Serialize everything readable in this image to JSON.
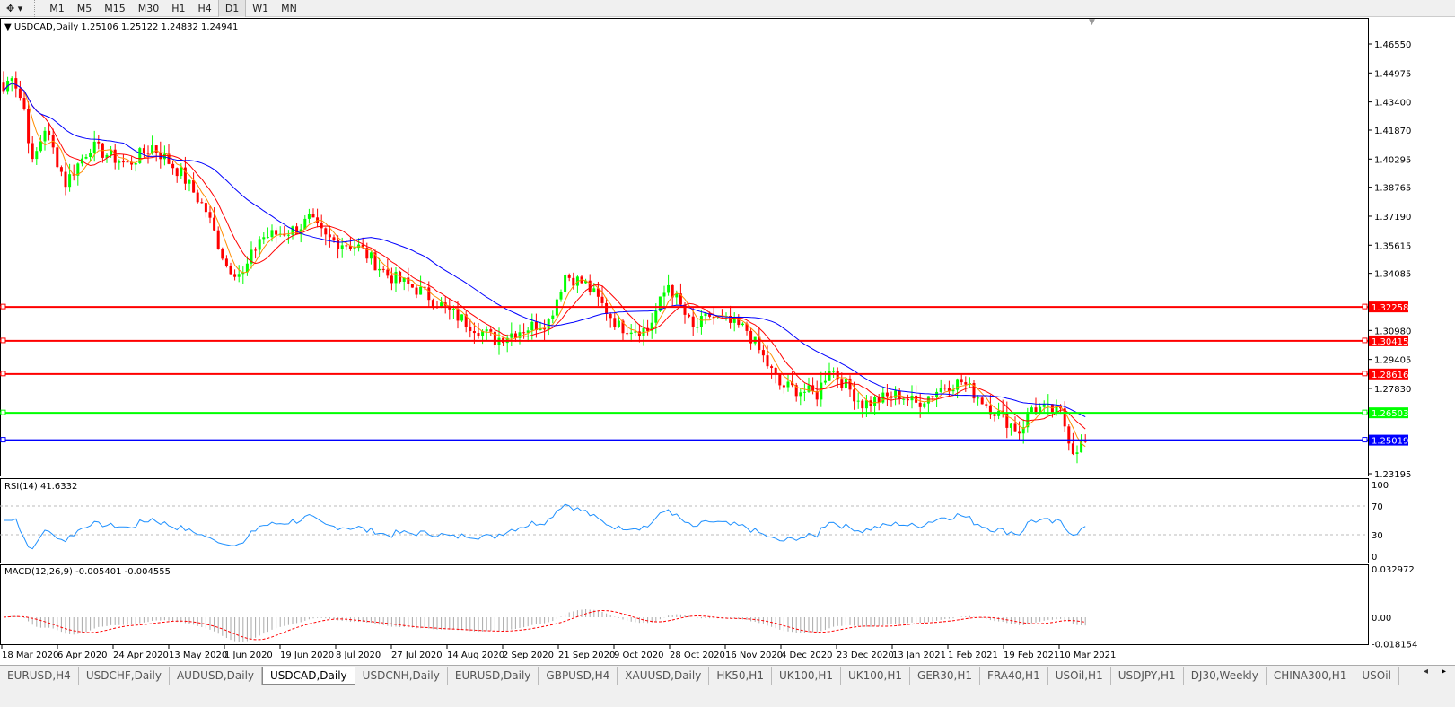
{
  "toolbar": {
    "timeframes": [
      "M1",
      "M5",
      "M15",
      "M30",
      "H1",
      "H4",
      "D1",
      "W1",
      "MN"
    ],
    "active": "D1"
  },
  "chart": {
    "header": "USDCAD,Daily  1.25106 1.25122 1.24832 1.24941",
    "price_ticks": [
      "1.46550",
      "1.44975",
      "1.43400",
      "1.41870",
      "1.40295",
      "1.38765",
      "1.37190",
      "1.35615",
      "1.34085",
      "1.30980",
      "1.29405",
      "1.27830",
      "1.23195"
    ],
    "price_tick_values": [
      1.4655,
      1.44975,
      1.434,
      1.4187,
      1.40295,
      1.38765,
      1.3719,
      1.35615,
      1.34085,
      1.3098,
      1.29405,
      1.2783,
      1.23195
    ],
    "hlines": [
      {
        "label": "1.32258",
        "value": 1.32258,
        "color": "#ff0000"
      },
      {
        "label": "1.30415",
        "value": 1.30415,
        "color": "#ff0000"
      },
      {
        "label": "1.28616",
        "value": 1.28616,
        "color": "#ff0000"
      },
      {
        "label": "1.26503",
        "value": 1.26503,
        "color": "#00ff00"
      },
      {
        "label": "1.25019",
        "value": 1.25019,
        "color": "#0000ff"
      }
    ],
    "price_path": [
      [
        0,
        1.44
      ],
      [
        2,
        1.45
      ],
      [
        5,
        1.43
      ],
      [
        7,
        1.4
      ],
      [
        10,
        1.42
      ],
      [
        15,
        1.39
      ],
      [
        21,
        1.41
      ],
      [
        30,
        1.4
      ],
      [
        36,
        1.41
      ],
      [
        43,
        1.395
      ],
      [
        49,
        1.375
      ],
      [
        54,
        1.345
      ],
      [
        58,
        1.34
      ],
      [
        62,
        1.36
      ],
      [
        71,
        1.365
      ],
      [
        74,
        1.37
      ],
      [
        78,
        1.36
      ],
      [
        86,
        1.355
      ],
      [
        93,
        1.34
      ],
      [
        102,
        1.33
      ],
      [
        108,
        1.32
      ],
      [
        119,
        1.305
      ],
      [
        125,
        1.31
      ],
      [
        132,
        1.315
      ],
      [
        136,
        1.34
      ],
      [
        141,
        1.335
      ],
      [
        149,
        1.312
      ],
      [
        156,
        1.31
      ],
      [
        161,
        1.335
      ],
      [
        167,
        1.31
      ],
      [
        171,
        1.318
      ],
      [
        180,
        1.31
      ],
      [
        188,
        1.28
      ],
      [
        197,
        1.275
      ],
      [
        200,
        1.29
      ],
      [
        208,
        1.27
      ],
      [
        217,
        1.275
      ],
      [
        221,
        1.27
      ],
      [
        228,
        1.28
      ],
      [
        232,
        1.282
      ],
      [
        238,
        1.27
      ],
      [
        246,
        1.255
      ],
      [
        249,
        1.268
      ],
      [
        256,
        1.265
      ],
      [
        259,
        1.245
      ],
      [
        262,
        1.2494
      ]
    ],
    "bull_color": "#00ff00",
    "bear_color": "#ff0000",
    "ma_colors": [
      "#ff8c00",
      "#ff0000",
      "#0000ff"
    ],
    "dates": [
      "18 Mar 2020",
      "6 Apr 2020",
      "24 Apr 2020",
      "13 May 2020",
      "1 Jun 2020",
      "19 Jun 2020",
      "8 Jul 2020",
      "27 Jul 2020",
      "14 Aug 2020",
      "2 Sep 2020",
      "21 Sep 2020",
      "9 Oct 2020",
      "28 Oct 2020",
      "16 Nov 2020",
      "4 Dec 2020",
      "23 Dec 2020",
      "13 Jan 2021",
      "1 Feb 2021",
      "19 Feb 2021",
      "10 Mar 2021"
    ]
  },
  "rsi": {
    "header": "RSI(14) 41.6332",
    "ticks": [
      "100",
      "70",
      "30",
      "0"
    ],
    "levels": [
      100,
      70,
      30,
      0
    ],
    "color": "#1e90ff"
  },
  "macd": {
    "header": "MACD(12,26,9) -0.005401 -0.004555",
    "ticks": [
      "0.032972",
      "0.00",
      "-0.018154"
    ],
    "tick_values": [
      0.032972,
      0,
      -0.018154
    ]
  },
  "tabs": [
    "EURUSD,H4",
    "USDCHF,Daily",
    "AUDUSD,Daily",
    "USDCAD,Daily",
    "USDCNH,Daily",
    "EURUSD,Daily",
    "GBPUSD,H4",
    "XAUUSD,Daily",
    "HK50,H1",
    "UK100,H1",
    "UK100,H1",
    "GER30,H1",
    "FRA40,H1",
    "USOil,H1",
    "USDJPY,H1",
    "DJ30,Weekly",
    "CHINA300,H1",
    "USOil"
  ],
  "active_tab": "USDCAD,Daily"
}
